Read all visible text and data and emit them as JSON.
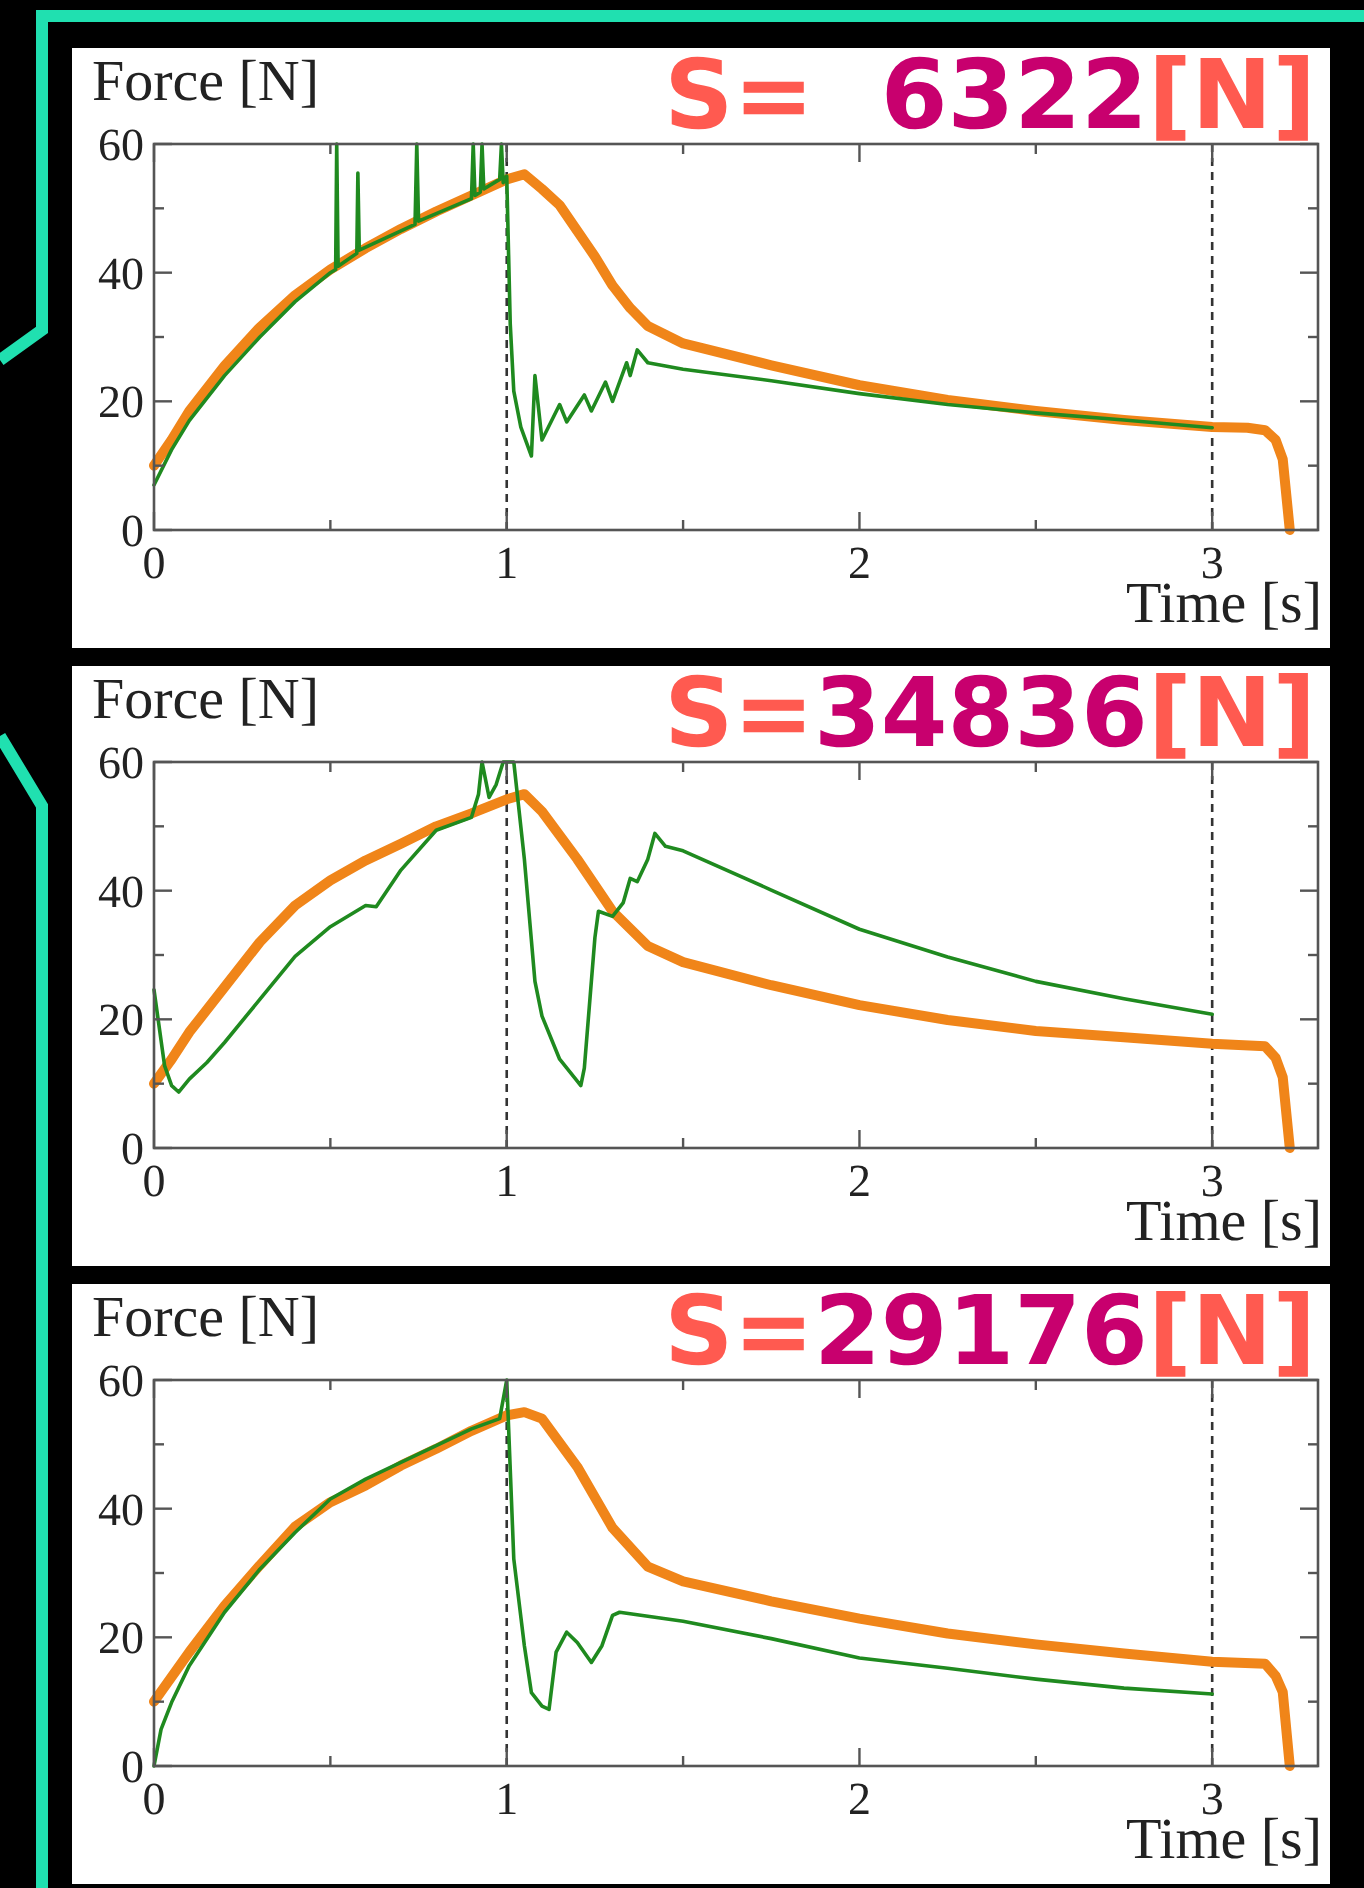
{
  "chart_data": [
    {
      "type": "line",
      "title": "S=  6322[N]",
      "xlabel": "Time [s]",
      "ylabel": "Force [N]",
      "xlim": [
        0,
        3.3
      ],
      "ylim": [
        0,
        60
      ],
      "xticks": [
        0,
        {
          "value": 0.5,
          "label": null
        },
        1,
        {
          "value": 1.5,
          "label": null
        },
        2,
        {
          "value": 2.5,
          "label": null
        },
        3
      ],
      "yticks": [
        0,
        {
          "value": 10,
          "label": null
        },
        20,
        {
          "value": 30,
          "label": null
        },
        40,
        {
          "value": 50,
          "label": null
        },
        60
      ],
      "ref_lines": [
        {
          "axis": "x",
          "value": 1,
          "color": "#333333",
          "line_style": "dashed"
        },
        {
          "axis": "x",
          "value": 3,
          "color": "#333333",
          "line_style": "dashed"
        }
      ],
      "series": [
        {
          "color": "#f08519",
          "x": [
            0,
            0.05,
            0.1,
            0.2,
            0.3,
            0.4,
            0.5,
            0.6,
            0.7,
            0.8,
            0.9,
            1.0,
            1.05,
            1.1,
            1.15,
            1.2,
            1.25,
            1.3,
            1.35,
            1.4,
            1.5,
            1.75,
            2.0,
            2.25,
            2.5,
            2.75,
            3.0,
            3.1,
            3.15,
            3.18,
            3.2,
            3.22
          ],
          "values": [
            10,
            14,
            18.5,
            25.5,
            31.5,
            36.5,
            40.5,
            43.8,
            46.8,
            49.5,
            52,
            54.5,
            55.3,
            53,
            50.5,
            46.5,
            42.5,
            38,
            34.5,
            31.7,
            29,
            25.6,
            22.5,
            20.2,
            18.5,
            17.1,
            16,
            15.9,
            15.5,
            14,
            11,
            0
          ]
        },
        {
          "color": "#1f8a1f",
          "x": [
            0,
            0.05,
            0.1,
            0.2,
            0.3,
            0.4,
            0.5,
            0.515,
            0.518,
            0.522,
            0.575,
            0.578,
            0.582,
            0.74,
            0.745,
            0.75,
            0.9,
            0.905,
            0.91,
            0.925,
            0.93,
            0.935,
            0.98,
            0.985,
            0.99,
            1.0,
            1.01,
            1.02,
            1.04,
            1.07,
            1.08,
            1.1,
            1.15,
            1.17,
            1.22,
            1.24,
            1.28,
            1.3,
            1.34,
            1.35,
            1.37,
            1.4,
            1.5,
            1.75,
            2.0,
            2.25,
            2.5,
            2.75,
            3.0
          ],
          "values": [
            7,
            12.5,
            17,
            24,
            30,
            35.5,
            40,
            40.5,
            60,
            41,
            43,
            55.5,
            43.5,
            47.5,
            60,
            48,
            51.5,
            60,
            52,
            52.5,
            60,
            53,
            54.5,
            60,
            54,
            55,
            32,
            21.6,
            16,
            11.5,
            24,
            14,
            19.5,
            16.8,
            21,
            18.5,
            23,
            20,
            26,
            24,
            28,
            26,
            25,
            23.2,
            21.2,
            19.5,
            18.2,
            17.1,
            15.9
          ]
        }
      ]
    },
    {
      "type": "line",
      "title": "S=34836[N]",
      "xlabel": "Time [s]",
      "ylabel": "Force [N]",
      "xlim": [
        0,
        3.3
      ],
      "ylim": [
        0,
        60
      ],
      "xticks": [
        0,
        {
          "value": 0.5,
          "label": null
        },
        1,
        {
          "value": 1.5,
          "label": null
        },
        2,
        {
          "value": 2.5,
          "label": null
        },
        3
      ],
      "yticks": [
        0,
        {
          "value": 10,
          "label": null
        },
        20,
        {
          "value": 30,
          "label": null
        },
        40,
        {
          "value": 50,
          "label": null
        },
        60
      ],
      "ref_lines": [
        {
          "axis": "x",
          "value": 1,
          "color": "#333333",
          "line_style": "dashed"
        },
        {
          "axis": "x",
          "value": 3,
          "color": "#333333",
          "line_style": "dashed"
        }
      ],
      "series": [
        {
          "color": "#f08519",
          "x": [
            0,
            0.05,
            0.1,
            0.2,
            0.3,
            0.4,
            0.5,
            0.6,
            0.7,
            0.8,
            0.9,
            1.0,
            1.05,
            1.1,
            1.2,
            1.3,
            1.4,
            1.5,
            1.75,
            2.0,
            2.25,
            2.5,
            2.75,
            3.0,
            3.15,
            3.18,
            3.2,
            3.22
          ],
          "values": [
            10,
            13.8,
            18,
            25,
            32,
            37.7,
            41.6,
            44.7,
            47.3,
            50,
            52,
            54.2,
            55,
            52.3,
            44.9,
            36.8,
            31.4,
            28.9,
            25.3,
            22.2,
            19.9,
            18.2,
            17.2,
            16.2,
            15.8,
            14,
            11,
            0
          ]
        },
        {
          "color": "#1f8a1f",
          "x": [
            0,
            0.03,
            0.05,
            0.07,
            0.1,
            0.15,
            0.2,
            0.3,
            0.4,
            0.5,
            0.6,
            0.63,
            0.7,
            0.8,
            0.9,
            0.92,
            0.93,
            0.95,
            0.97,
            0.99,
            1.02,
            1.05,
            1.08,
            1.1,
            1.15,
            1.2,
            1.21,
            1.22,
            1.25,
            1.26,
            1.3,
            1.33,
            1.35,
            1.37,
            1.4,
            1.42,
            1.45,
            1.5,
            1.75,
            2.0,
            2.25,
            2.5,
            2.75,
            3.0
          ],
          "values": [
            24.6,
            12.8,
            9.7,
            8.7,
            10.7,
            13.3,
            16.4,
            23.1,
            29.8,
            34.4,
            37.7,
            37.5,
            43.2,
            49.4,
            51.4,
            55,
            60,
            54.5,
            56.5,
            60,
            60,
            44.9,
            25.9,
            20.5,
            13.8,
            10.4,
            9.7,
            12.4,
            32.7,
            36.8,
            36,
            38.1,
            41.9,
            41.4,
            44.9,
            48.9,
            46.9,
            46.2,
            40.1,
            34,
            29.7,
            25.9,
            23.2,
            20.8
          ]
        }
      ]
    },
    {
      "type": "line",
      "title": "S=29176[N]",
      "xlabel": "Time [s]",
      "ylabel": "Force [N]",
      "xlim": [
        0,
        3.3
      ],
      "ylim": [
        0,
        60
      ],
      "xticks": [
        0,
        {
          "value": 0.5,
          "label": null
        },
        1,
        {
          "value": 1.5,
          "label": null
        },
        2,
        {
          "value": 2.5,
          "label": null
        },
        3
      ],
      "yticks": [
        0,
        {
          "value": 10,
          "label": null
        },
        20,
        {
          "value": 30,
          "label": null
        },
        40,
        {
          "value": 50,
          "label": null
        },
        60
      ],
      "ref_lines": [
        {
          "axis": "x",
          "value": 1,
          "color": "#333333",
          "line_style": "dashed"
        },
        {
          "axis": "x",
          "value": 3,
          "color": "#333333",
          "line_style": "dashed"
        }
      ],
      "series": [
        {
          "color": "#f08519",
          "x": [
            0,
            0.1,
            0.2,
            0.3,
            0.4,
            0.5,
            0.6,
            0.7,
            0.8,
            0.9,
            1.0,
            1.05,
            1.1,
            1.2,
            1.3,
            1.4,
            1.5,
            1.75,
            2.0,
            2.25,
            2.5,
            2.75,
            3.0,
            3.15,
            3.18,
            3.2,
            3.22
          ],
          "values": [
            10,
            17.7,
            24.9,
            31.2,
            37.2,
            41,
            43.6,
            46.7,
            49.3,
            52.1,
            54.5,
            55,
            54,
            46.5,
            37,
            31,
            28.7,
            25.6,
            22.9,
            20.6,
            18.9,
            17.5,
            16.2,
            15.9,
            14,
            11.5,
            0
          ]
        },
        {
          "color": "#1f8a1f",
          "x": [
            0,
            0.02,
            0.05,
            0.1,
            0.2,
            0.3,
            0.4,
            0.5,
            0.6,
            0.7,
            0.8,
            0.9,
            0.98,
            1.0,
            1.02,
            1.05,
            1.07,
            1.1,
            1.12,
            1.14,
            1.17,
            1.2,
            1.24,
            1.27,
            1.3,
            1.32,
            1.5,
            1.75,
            2.0,
            2.25,
            2.5,
            2.75,
            3.0
          ],
          "values": [
            0,
            5.7,
            9.9,
            15.6,
            23.9,
            30.6,
            36.3,
            41.5,
            44.6,
            47.2,
            49.8,
            52.4,
            54,
            60,
            32.2,
            18.7,
            11.4,
            9.3,
            8.8,
            17.7,
            20.8,
            19.2,
            16.1,
            18.7,
            23.4,
            23.9,
            22.5,
            19.8,
            16.8,
            15.2,
            13.5,
            12.1,
            11.2
          ]
        }
      ]
    }
  ]
}
